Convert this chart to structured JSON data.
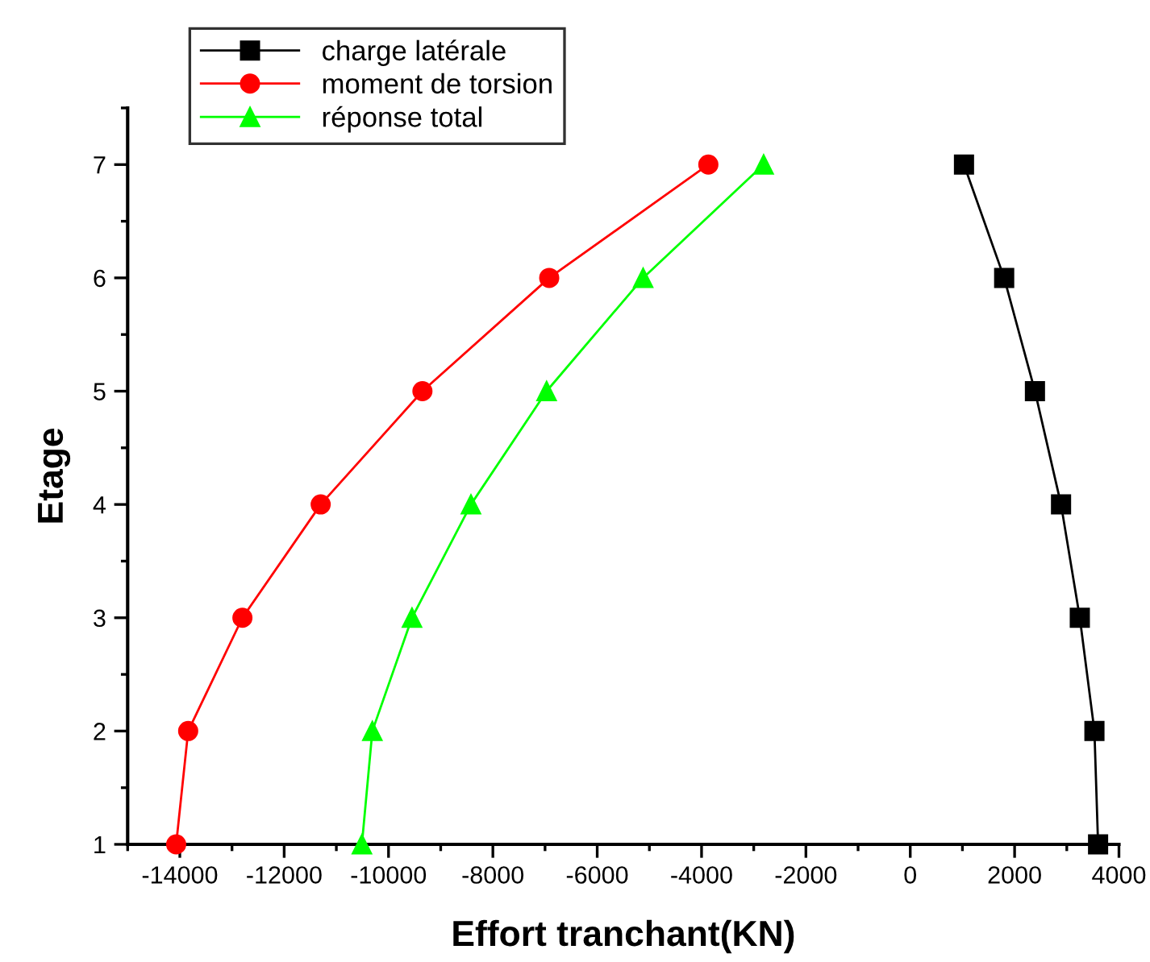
{
  "chart_data": {
    "type": "line",
    "xlabel": "Effort tranchant(KN)",
    "ylabel": "Etage",
    "series": [
      {
        "name": "charge latérale",
        "color": "#000000",
        "marker": "square",
        "x": [
          3600,
          3530,
          3250,
          2890,
          2390,
          1800,
          1030
        ],
        "values": [
          1,
          2,
          3,
          4,
          5,
          6,
          7
        ]
      },
      {
        "name": "moment de torsion",
        "color": "#ff0000",
        "marker": "circle",
        "x": [
          -14070,
          -13840,
          -12800,
          -11300,
          -9350,
          -6920,
          -3870
        ],
        "values": [
          1,
          2,
          3,
          4,
          5,
          6,
          7
        ]
      },
      {
        "name": "réponse total",
        "color": "#00ff00",
        "marker": "triangle",
        "x": [
          -10510,
          -10310,
          -9550,
          -8420,
          -6970,
          -5120,
          -2810
        ],
        "values": [
          1,
          2,
          3,
          4,
          5,
          6,
          7
        ]
      }
    ],
    "xlim": [
      -15000,
      4000
    ],
    "xticks": [
      {
        "value": -15000,
        "label": null
      },
      -14000,
      {
        "value": -13000,
        "label": null
      },
      -12000,
      {
        "value": -11000,
        "label": null
      },
      -10000,
      {
        "value": -9000,
        "label": null
      },
      -8000,
      {
        "value": -7000,
        "label": null
      },
      -6000,
      {
        "value": -5000,
        "label": null
      },
      -4000,
      {
        "value": -3000,
        "label": null
      },
      -2000,
      {
        "value": -1000,
        "label": null
      },
      0,
      {
        "value": 1000,
        "label": null
      },
      2000,
      {
        "value": 3000,
        "label": null
      },
      4000
    ],
    "ylim": [
      1,
      7.5
    ],
    "yticks": [
      1,
      {
        "value": 1.5,
        "label": null
      },
      2,
      {
        "value": 2.5,
        "label": null
      },
      3,
      {
        "value": 3.5,
        "label": null
      },
      4,
      {
        "value": 4.5,
        "label": null
      },
      5,
      {
        "value": 5.5,
        "label": null
      },
      6,
      {
        "value": 6.5,
        "label": null
      },
      7,
      {
        "value": 7.5,
        "label": null
      }
    ],
    "grid": false,
    "legend": "top left",
    "line_style": "solid"
  }
}
